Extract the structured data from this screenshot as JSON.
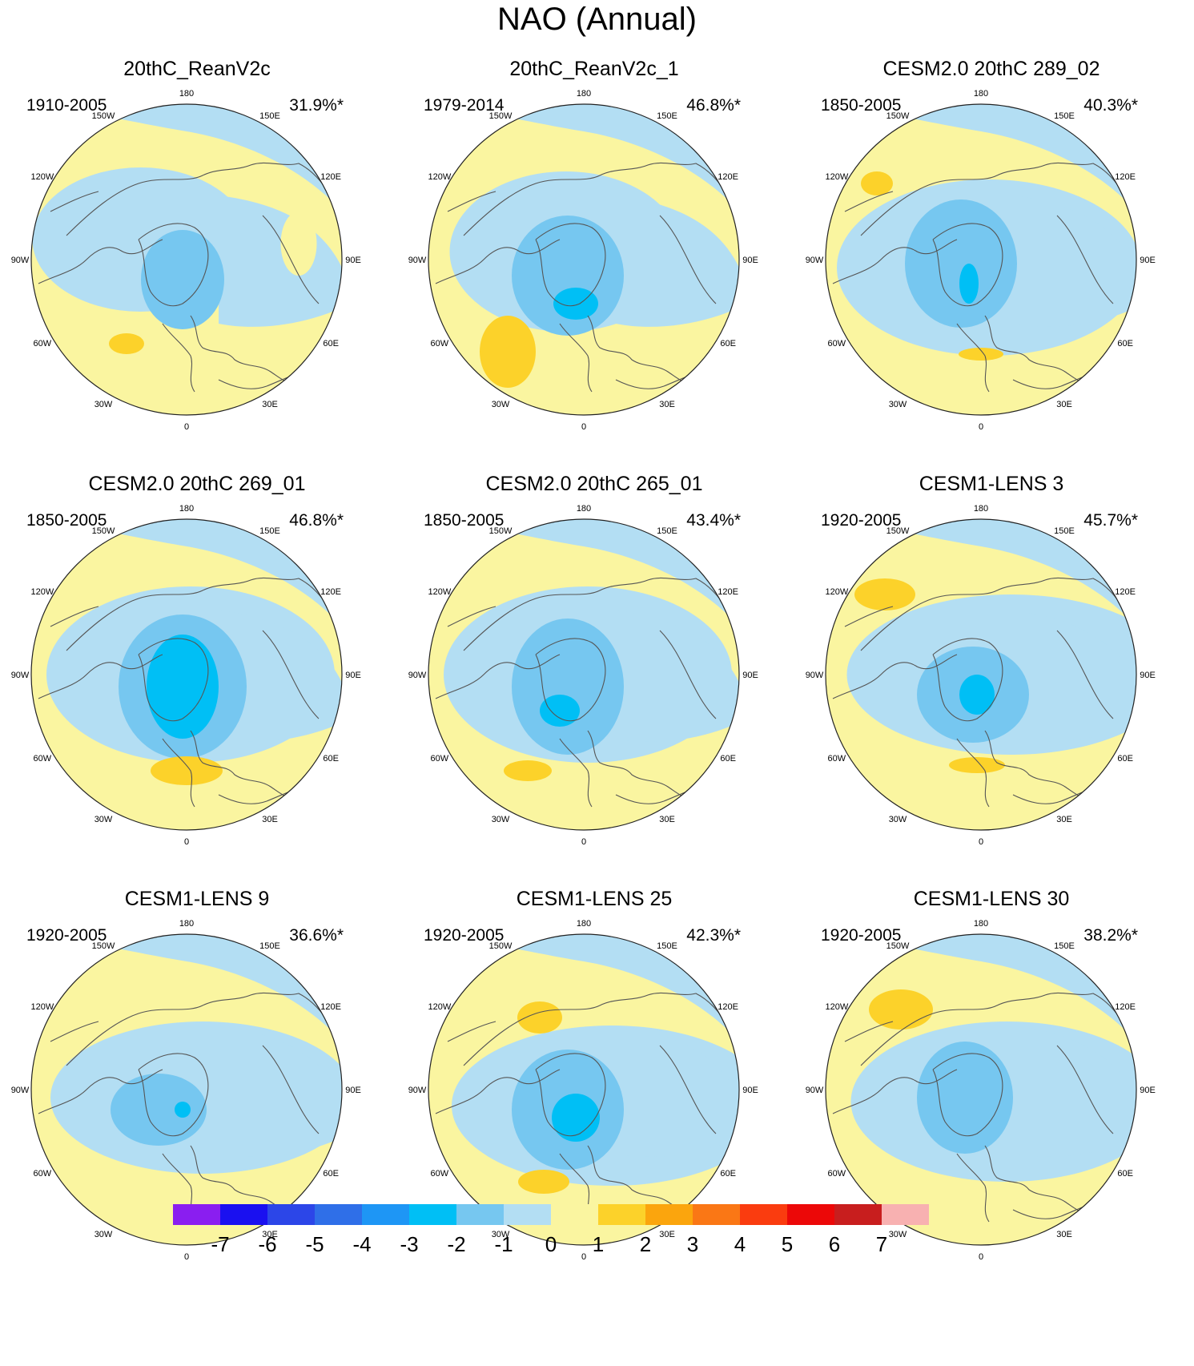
{
  "title": "NAO (Annual)",
  "colors": {
    "neg7": "#8a1ef0",
    "neg6": "#1a10f0",
    "neg5": "#2c46e8",
    "neg4": "#2f6fe8",
    "neg3": "#1e96f5",
    "neg2": "#00bff5",
    "neg1": "#76c7f0",
    "zero_neg": "#b3def3",
    "zero_pos": "#faf5a0",
    "pos1": "#fcd22a",
    "pos2": "#fba50d",
    "pos3": "#fa7715",
    "pos4": "#fa3c0f",
    "pos5": "#ec0808",
    "pos6": "#c81e1e",
    "pos7": "#f8b1b1",
    "coast": "#555555"
  },
  "lon_labels": [
    "180",
    "150E",
    "120E",
    "90E",
    "60E",
    "30E",
    "0",
    "30W",
    "60W",
    "90W",
    "120W",
    "150W"
  ],
  "panels": [
    {
      "title": "20thC_ReanV2c",
      "period": "1910-2005",
      "pct": "31.9%*",
      "variant": 0
    },
    {
      "title": "20thC_ReanV2c_1",
      "period": "1979-2014",
      "pct": "46.8%*",
      "variant": 1
    },
    {
      "title": "CESM2.0 20thC 289_02",
      "period": "1850-2005",
      "pct": "40.3%*",
      "variant": 2
    },
    {
      "title": "CESM2.0 20thC 269_01",
      "period": "1850-2005",
      "pct": "46.8%*",
      "variant": 3
    },
    {
      "title": "CESM2.0 20thC 265_01",
      "period": "1850-2005",
      "pct": "43.4%*",
      "variant": 4
    },
    {
      "title": "CESM1-LENS 3",
      "period": "1920-2005",
      "pct": "45.7%*",
      "variant": 5
    },
    {
      "title": "CESM1-LENS 9",
      "period": "1920-2005",
      "pct": "36.6%*",
      "variant": 6
    },
    {
      "title": "CESM1-LENS 25",
      "period": "1920-2005",
      "pct": "42.3%*",
      "variant": 7
    },
    {
      "title": "CESM1-LENS 30",
      "period": "1920-2005",
      "pct": "38.2%*",
      "variant": 8
    }
  ],
  "colorbar": {
    "labels": [
      "-7",
      "-6",
      "-5",
      "-4",
      "-3",
      "-2",
      "-1",
      "0",
      "1",
      "2",
      "3",
      "4",
      "5",
      "6",
      "7"
    ],
    "colors": [
      "#8a1ef0",
      "#1a10f0",
      "#2c46e8",
      "#2f6fe8",
      "#1e96f5",
      "#00bff5",
      "#76c7f0",
      "#b3def3",
      "#faf5a0",
      "#fcd22a",
      "#fba50d",
      "#fa7715",
      "#fa3c0f",
      "#ec0808",
      "#c81e1e",
      "#f8b1b1"
    ]
  }
}
